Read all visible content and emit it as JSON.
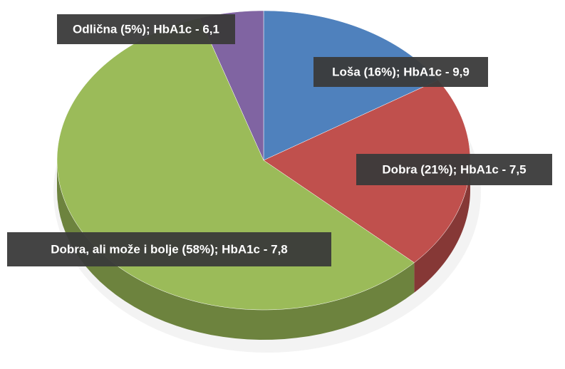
{
  "chart_data": {
    "type": "pie",
    "categories": [
      "Loša (16%); HbA1c - 9,9",
      "Dobra (21%); HbA1c - 7,5",
      "Dobra, ali može i bolje (58%); HbA1c - 7,8",
      "Odlična (5%); HbA1c - 6,1"
    ],
    "values": [
      16,
      21,
      58,
      5
    ],
    "colors": [
      "#4f81bd",
      "#c0504d",
      "#9bbb59",
      "#8064a2"
    ]
  }
}
